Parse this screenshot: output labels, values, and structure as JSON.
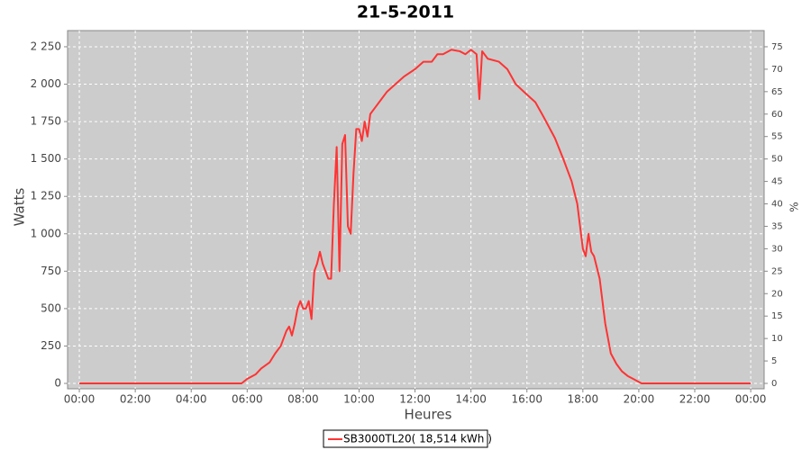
{
  "chart_data": {
    "type": "line",
    "title": "21-5-2011",
    "x_label": "Heures",
    "y_label": "Watts",
    "y2_label": "%",
    "xlim": [
      -0.42,
      24.48
    ],
    "xticks": [
      {
        "value": 0,
        "label": "00:00"
      },
      {
        "value": 2,
        "label": "02:00"
      },
      {
        "value": 4,
        "label": "04:00"
      },
      {
        "value": 6,
        "label": "06:00"
      },
      {
        "value": 8,
        "label": "08:00"
      },
      {
        "value": 10,
        "label": "10:00"
      },
      {
        "value": 12,
        "label": "12:00"
      },
      {
        "value": 14,
        "label": "14:00"
      },
      {
        "value": 16,
        "label": "16:00"
      },
      {
        "value": 18,
        "label": "18:00"
      },
      {
        "value": 20,
        "label": "20:00"
      },
      {
        "value": 22,
        "label": "22:00"
      },
      {
        "value": 24,
        "label": "00:00"
      }
    ],
    "ylim": [
      -36,
      2358
    ],
    "yticks": [
      0,
      250,
      500,
      750,
      {
        "value": 1000,
        "label": "1 000"
      },
      {
        "value": 1250,
        "label": "1 250"
      },
      {
        "value": 1500,
        "label": "1 500"
      },
      {
        "value": 1750,
        "label": "1 750"
      },
      {
        "value": 2000,
        "label": "2 000"
      },
      {
        "value": 2250,
        "label": "2 250"
      }
    ],
    "y2lim": [
      -1.2,
      78.6
    ],
    "y2ticks": [
      0,
      5,
      10,
      15,
      20,
      25,
      30,
      35,
      40,
      45,
      50,
      55,
      60,
      65,
      70,
      75
    ],
    "grid": true,
    "background": "#cccccc",
    "series": [
      {
        "name": "SB3000TL20( 18,514 kWh )",
        "color": "#ff3333",
        "x": [
          0,
          5.8,
          6.0,
          6.3,
          6.5,
          6.8,
          7.0,
          7.2,
          7.4,
          7.5,
          7.6,
          7.7,
          7.8,
          7.9,
          8.0,
          8.1,
          8.2,
          8.3,
          8.4,
          8.5,
          8.6,
          8.7,
          8.8,
          8.9,
          9.0,
          9.1,
          9.2,
          9.3,
          9.4,
          9.5,
          9.6,
          9.7,
          9.8,
          9.9,
          10.0,
          10.1,
          10.2,
          10.3,
          10.4,
          10.6,
          10.8,
          11.0,
          11.3,
          11.6,
          12.0,
          12.3,
          12.6,
          12.8,
          13.0,
          13.3,
          13.6,
          13.8,
          14.0,
          14.2,
          14.3,
          14.4,
          14.6,
          15.0,
          15.3,
          15.6,
          16.0,
          16.3,
          16.6,
          17.0,
          17.3,
          17.6,
          17.8,
          18.0,
          18.1,
          18.2,
          18.3,
          18.4,
          18.6,
          18.8,
          19.0,
          19.2,
          19.4,
          19.6,
          19.8,
          20.0,
          20.1,
          24
        ],
        "values": [
          0,
          0,
          30,
          60,
          100,
          140,
          200,
          250,
          350,
          380,
          320,
          400,
          500,
          550,
          500,
          500,
          550,
          430,
          750,
          800,
          880,
          800,
          750,
          700,
          700,
          1200,
          1580,
          750,
          1600,
          1660,
          1050,
          1000,
          1400,
          1700,
          1700,
          1620,
          1750,
          1650,
          1800,
          1850,
          1900,
          1950,
          2000,
          2050,
          2100,
          2150,
          2150,
          2200,
          2200,
          2230,
          2220,
          2200,
          2230,
          2200,
          1900,
          2220,
          2170,
          2150,
          2100,
          2000,
          1930,
          1880,
          1780,
          1640,
          1500,
          1350,
          1200,
          900,
          850,
          1000,
          880,
          850,
          700,
          400,
          200,
          130,
          80,
          50,
          30,
          10,
          0,
          0
        ]
      }
    ]
  }
}
